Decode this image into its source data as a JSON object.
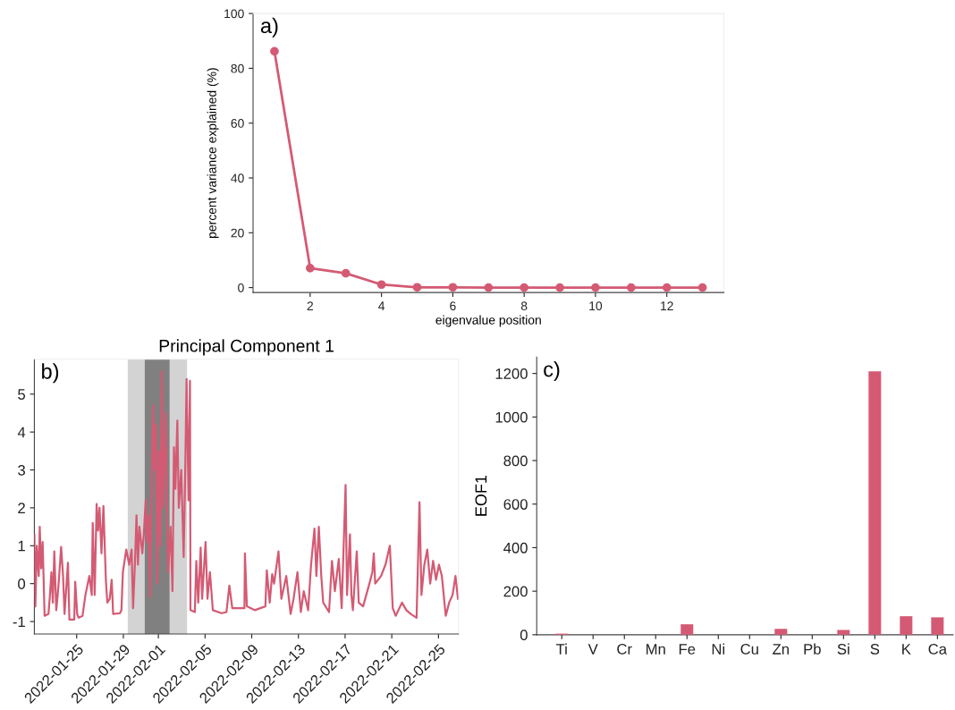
{
  "chart_data": [
    {
      "type": "line",
      "xlabel": "eigenvalue position",
      "ylabel": "percent variance explained (%)",
      "annotations": [
        "a)"
      ],
      "marker": "circle",
      "x": [
        1,
        2,
        3,
        4,
        5,
        6,
        7,
        8,
        9,
        10,
        11,
        12,
        13
      ],
      "series": [
        {
          "color": "#d45a73",
          "values": [
            86.2,
            7.1,
            5.2,
            1.1,
            0.1,
            0.1,
            0,
            0,
            0,
            0,
            0,
            0,
            0
          ]
        }
      ],
      "xlim": [
        0.4,
        13.6
      ],
      "xticks": [
        2,
        4,
        6,
        8,
        10,
        12
      ],
      "ylim": [
        -1.8,
        100
      ],
      "yticks": [
        0,
        20,
        40,
        60,
        80,
        100
      ]
    },
    {
      "type": "line",
      "title": "Principal Component 1",
      "annotations": [
        "b)"
      ],
      "x": [
        "2022-01-21T09:00",
        "2022-01-21T11:00",
        "2022-01-21T14:00",
        "2022-01-21T18:00",
        "2022-01-21T20:00",
        "2022-01-21T23:00",
        "2022-01-22T02:00",
        "2022-01-22T06:00",
        "2022-01-22T14:00",
        "2022-01-22T17:00",
        "2022-01-22T20:00",
        "2022-01-22T23:00",
        "2022-01-23T02:00",
        "2022-01-23T06:00",
        "2022-01-23T09:00",
        "2022-01-23T12:00",
        "2022-01-23T16:00",
        "2022-01-23T20:00",
        "2022-01-23T23:00",
        "2022-01-24T06:00",
        "2022-01-24T09:00",
        "2022-01-24T19:00",
        "2022-01-24T21:00",
        "2022-01-25T01:00",
        "2022-01-25T04:00",
        "2022-01-25T12:00",
        "2022-01-25T18:00",
        "2022-01-26T02:00",
        "2022-01-26T07:00",
        "2022-01-26T09:00",
        "2022-01-26T13:00",
        "2022-01-26T17:00",
        "2022-01-26T20:00",
        "2022-01-26T23:00",
        "2022-01-27T03:00",
        "2022-01-27T07:00",
        "2022-01-27T12:00",
        "2022-01-27T15:00",
        "2022-01-27T20:00",
        "2022-01-28T00:00",
        "2022-01-28T03:00",
        "2022-01-28T17:00",
        "2022-01-28T20:00",
        "2022-01-28T23:00",
        "2022-01-29T06:00",
        "2022-01-29T12:00",
        "2022-01-29T17:00",
        "2022-01-29T20:00",
        "2022-01-30T00:00",
        "2022-01-30T03:00",
        "2022-01-30T06:00",
        "2022-01-30T09:00",
        "2022-01-30T15:00",
        "2022-01-30T18:00",
        "2022-01-30T22:00",
        "2022-01-31T01:00",
        "2022-01-31T04:00",
        "2022-01-31T07:00",
        "2022-01-31T10:00",
        "2022-01-31T13:00",
        "2022-01-31T16:00",
        "2022-01-31T19:00",
        "2022-01-31T22:00",
        "2022-02-01T01:00",
        "2022-02-01T04:00",
        "2022-02-01T07:00",
        "2022-02-01T10:00",
        "2022-02-01T15:00",
        "2022-02-01T20:00",
        "2022-02-02T01:00",
        "2022-02-02T05:00",
        "2022-02-02T08:00",
        "2022-02-02T11:00",
        "2022-02-02T15:00",
        "2022-02-02T18:00",
        "2022-02-02T23:00",
        "2022-02-03T04:00",
        "2022-02-03T07:00",
        "2022-02-03T10:00",
        "2022-02-03T14:00",
        "2022-02-03T17:00",
        "2022-02-03T18:00",
        "2022-02-04T03:00",
        "2022-02-04T06:00",
        "2022-02-04T10:00",
        "2022-02-04T15:00",
        "2022-02-04T18:00",
        "2022-02-05T01:00",
        "2022-02-05T05:00",
        "2022-02-05T10:00",
        "2022-02-05T16:00",
        "2022-02-06T10:00",
        "2022-02-06T20:00",
        "2022-02-07T02:00",
        "2022-02-07T08:00",
        "2022-02-08T09:00",
        "2022-02-08T10:00",
        "2022-02-08T14:00",
        "2022-02-09T06:00",
        "2022-02-10T04:00",
        "2022-02-10T07:00",
        "2022-02-10T13:00",
        "2022-02-10T18:00",
        "2022-02-10T22:00",
        "2022-02-11T07:00",
        "2022-02-11T13:00",
        "2022-02-11T23:00",
        "2022-02-12T08:00",
        "2022-02-12T14:00",
        "2022-02-12T22:00",
        "2022-02-13T05:00",
        "2022-02-13T11:00",
        "2022-02-13T20:00",
        "2022-02-14T02:00",
        "2022-02-14T09:00",
        "2022-02-14T13:00",
        "2022-02-14T18:00",
        "2022-02-14T23:00",
        "2022-02-15T03:00",
        "2022-02-15T15:00",
        "2022-02-15T21:00",
        "2022-02-16T03:00",
        "2022-02-16T11:00",
        "2022-02-16T17:00",
        "2022-02-17T01:00",
        "2022-02-17T04:00",
        "2022-02-17T10:00",
        "2022-02-17T13:00",
        "2022-02-17T16:00",
        "2022-02-18T00:00",
        "2022-02-18T04:00",
        "2022-02-18T13:00",
        "2022-02-19T02:00",
        "2022-02-19T08:00",
        "2022-02-19T11:00",
        "2022-02-19T14:00",
        "2022-02-20T02:00",
        "2022-02-20T11:00",
        "2022-02-20T20:00",
        "2022-02-21T02:00",
        "2022-02-21T08:00",
        "2022-02-21T21:00",
        "2022-02-22T06:00",
        "2022-02-22T15:00",
        "2022-02-23T03:00",
        "2022-02-23T09:00",
        "2022-02-23T13:00",
        "2022-02-23T19:00",
        "2022-02-24T01:00",
        "2022-02-24T07:00",
        "2022-02-24T13:00",
        "2022-02-24T19:00",
        "2022-02-25T01:00",
        "2022-02-25T07:00",
        "2022-02-25T15:00",
        "2022-02-25T22:00",
        "2022-02-26T05:00",
        "2022-02-26T11:00",
        "2022-02-26T16:00"
      ],
      "series": [
        {
          "color": "#d45a73",
          "values": [
            1.3,
            -0.6,
            1.0,
            0.2,
            1.5,
            0.4,
            1.1,
            -0.85,
            -0.8,
            -0.3,
            0.3,
            -0.5,
            0.85,
            -0.7,
            -0.3,
            0.2,
            0.97,
            0.2,
            -0.8,
            0.55,
            -0.95,
            -0.95,
            0.05,
            -0.8,
            -0.9,
            -0.85,
            -0.3,
            0.2,
            -0.3,
            1.6,
            -0.3,
            2.1,
            1.4,
            2.0,
            0.8,
            2.05,
            0.1,
            -0.5,
            -0.4,
            0.1,
            -0.8,
            -0.78,
            -0.7,
            0.3,
            0.9,
            0.5,
            0.9,
            -0.65,
            0.6,
            1.8,
            0.5,
            1.5,
            0.8,
            1.3,
            2.2,
            1.1,
            1.8,
            -0.35,
            2.2,
            4.7,
            3.0,
            4.2,
            0.0,
            3.5,
            1.0,
            5.6,
            2.0,
            4.5,
            0.3,
            1.5,
            -0.2,
            3.6,
            2.5,
            4.3,
            2.0,
            3.0,
            0.7,
            2.8,
            5.4,
            2.2,
            5.35,
            -0.7,
            -0.75,
            0.6,
            -0.5,
            0.95,
            -0.4,
            1.1,
            -0.4,
            0.3,
            -0.7,
            -0.78,
            -0.75,
            -0.05,
            -0.65,
            -0.65,
            0.8,
            -0.6,
            -0.7,
            -0.6,
            0.35,
            -0.5,
            0.25,
            0.0,
            0.85,
            -0.4,
            0.2,
            -0.8,
            -0.4,
            0.3,
            -0.75,
            -0.2,
            -0.7,
            0.5,
            1.45,
            0.2,
            1.5,
            0.2,
            -0.5,
            -0.75,
            0.6,
            -0.2,
            0.65,
            -0.65,
            2.6,
            -0.3,
            1.3,
            -0.3,
            -0.7,
            0.85,
            -0.5,
            -0.6,
            0.0,
            0.3,
            0.8,
            0.0,
            0.2,
            0.5,
            1.0,
            -0.65,
            -0.85,
            -0.5,
            -0.7,
            -0.8,
            -0.9,
            2.15,
            -0.3,
            0.5,
            0.9,
            0.0,
            0.6,
            0.1,
            0.5,
            0.2,
            -0.85,
            -0.5,
            -0.3,
            0.2,
            -0.4
          ]
        }
      ],
      "bands": [
        {
          "axis": "x",
          "from": "2022-01-29T09:00",
          "to": "2022-02-03T11:00",
          "color": "#d3d3d3"
        },
        {
          "axis": "x",
          "from": "2022-01-30T20:00",
          "to": "2022-02-01T23:00",
          "color": "#808080"
        }
      ],
      "xlim": [
        "2022-01-21T09:00",
        "2022-02-26T17:00"
      ],
      "xticks": [
        "2022-01-25",
        "2022-01-29",
        "2022-02-01",
        "2022-02-05",
        "2022-02-09",
        "2022-02-13",
        "2022-02-17",
        "2022-02-21",
        "2022-02-25"
      ],
      "ylim": [
        -1.33,
        5.92
      ],
      "yticks": [
        -1,
        0,
        1,
        2,
        3,
        4,
        5
      ]
    },
    {
      "type": "bar",
      "ylabel": "EOF1",
      "annotations": [
        "c)"
      ],
      "categories": [
        "Ti",
        "V",
        "Cr",
        "Mn",
        "Fe",
        "Ni",
        "Cu",
        "Zn",
        "Pb",
        "Si",
        "S",
        "K",
        "Ca"
      ],
      "series": [
        {
          "color": "#d45a73",
          "values": [
            5,
            0,
            0,
            0,
            48,
            0,
            0,
            27,
            0,
            22,
            1210,
            85,
            80
          ]
        }
      ],
      "ylim": [
        0,
        1275
      ],
      "yticks": [
        0,
        200,
        400,
        600,
        800,
        1000,
        1200
      ]
    }
  ]
}
